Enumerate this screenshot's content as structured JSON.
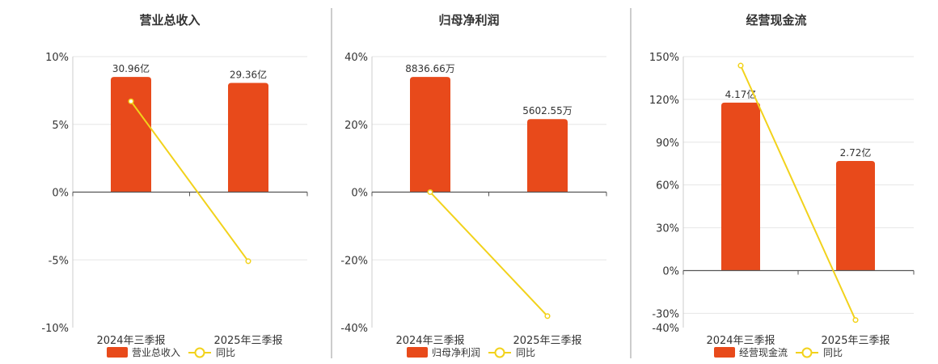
{
  "colors": {
    "bar": "#e84a1b",
    "line": "#f2d21b",
    "grid": "#e6e6e6",
    "axis": "#555555",
    "divider": "#999999"
  },
  "legend": {
    "line_label": "同比"
  },
  "chart_data": [
    {
      "type": "bar",
      "title": "营业总收入",
      "categories": [
        "2024年三季报",
        "2025年三季报"
      ],
      "series": [
        {
          "name": "营业总收入",
          "type": "bar",
          "axis": "value",
          "values": [
            30.96,
            29.36
          ],
          "labels": [
            "30.96亿",
            "29.36亿"
          ]
        },
        {
          "name": "同比",
          "type": "line",
          "axis": "pct",
          "values": [
            6.7,
            -5.1
          ]
        }
      ],
      "yaxis": {
        "min": -10,
        "max": 10,
        "ticks": [
          10,
          5,
          0,
          -5,
          -10
        ],
        "tick_labels": [
          "10%",
          "5%",
          "0%",
          "-5%",
          "-10%"
        ]
      },
      "legend_position": "bottom"
    },
    {
      "type": "bar",
      "title": "归母净利润",
      "categories": [
        "2024年三季报",
        "2025年三季报"
      ],
      "series": [
        {
          "name": "归母净利润",
          "type": "bar",
          "axis": "value",
          "values": [
            8836.66,
            5602.55
          ],
          "labels": [
            "8836.66万",
            "5602.55万"
          ]
        },
        {
          "name": "同比",
          "type": "line",
          "axis": "pct",
          "values": [
            0,
            -36.6
          ]
        }
      ],
      "yaxis": {
        "min": -40,
        "max": 40,
        "ticks": [
          40,
          20,
          0,
          -20,
          -40
        ],
        "tick_labels": [
          "40%",
          "20%",
          "0%",
          "-20%",
          "-40%"
        ]
      },
      "legend_position": "bottom"
    },
    {
      "type": "bar",
      "title": "经营现金流",
      "categories": [
        "2024年三季报",
        "2025年三季报"
      ],
      "series": [
        {
          "name": "经营现金流",
          "type": "bar",
          "axis": "value",
          "values": [
            4.17,
            2.72
          ],
          "labels": [
            "4.17亿",
            "2.72亿"
          ]
        },
        {
          "name": "同比",
          "type": "line",
          "axis": "pct",
          "values": [
            143.7,
            -34.7
          ]
        }
      ],
      "yaxis": {
        "min": -40,
        "max": 150,
        "ticks": [
          150,
          120,
          90,
          60,
          30,
          0,
          -30,
          -40
        ],
        "tick_labels": [
          "150%",
          "120%",
          "90%",
          "60%",
          "30%",
          "0%",
          "-30%",
          "-40%"
        ]
      },
      "legend_position": "bottom"
    }
  ]
}
